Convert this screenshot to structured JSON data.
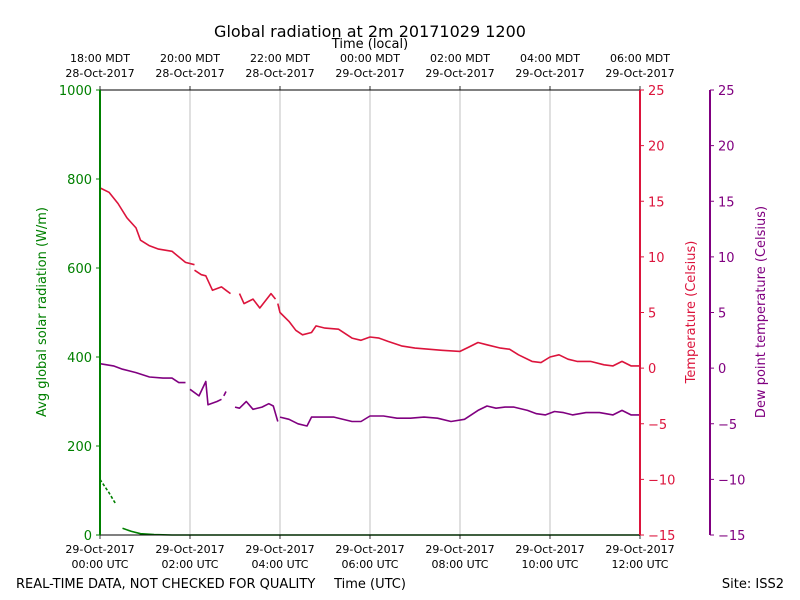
{
  "chart_data": {
    "type": "line",
    "title": "Global radiation at 2m 20171029 1200",
    "top_axis_label": "Time (local)",
    "xlabel": "Time (UTC)",
    "footer_left": "REAL-TIME DATA, NOT CHECKED FOR QUALITY",
    "footer_right": "Site: ISS2",
    "x_range_hours": [
      0,
      12
    ],
    "bottom_ticks": [
      {
        "hour": 0,
        "line1": "29-Oct-2017",
        "line2": "00:00 UTC"
      },
      {
        "hour": 2,
        "line1": "29-Oct-2017",
        "line2": "02:00 UTC"
      },
      {
        "hour": 4,
        "line1": "29-Oct-2017",
        "line2": "04:00 UTC"
      },
      {
        "hour": 6,
        "line1": "29-Oct-2017",
        "line2": "06:00 UTC"
      },
      {
        "hour": 8,
        "line1": "29-Oct-2017",
        "line2": "08:00 UTC"
      },
      {
        "hour": 10,
        "line1": "29-Oct-2017",
        "line2": "10:00 UTC"
      },
      {
        "hour": 12,
        "line1": "29-Oct-2017",
        "line2": "12:00 UTC"
      }
    ],
    "top_ticks": [
      {
        "hour": 0,
        "line1": "18:00 MDT",
        "line2": "28-Oct-2017"
      },
      {
        "hour": 2,
        "line1": "20:00 MDT",
        "line2": "28-Oct-2017"
      },
      {
        "hour": 4,
        "line1": "22:00 MDT",
        "line2": "28-Oct-2017"
      },
      {
        "hour": 6,
        "line1": "00:00 MDT",
        "line2": "29-Oct-2017"
      },
      {
        "hour": 8,
        "line1": "02:00 MDT",
        "line2": "29-Oct-2017"
      },
      {
        "hour": 10,
        "line1": "04:00 MDT",
        "line2": "29-Oct-2017"
      },
      {
        "hour": 12,
        "line1": "06:00 MDT",
        "line2": "29-Oct-2017"
      }
    ],
    "axes": {
      "left": {
        "label": "Avg global solar radiation (W/m)",
        "range": [
          0,
          1000
        ],
        "ticks": [
          "0",
          "200",
          "400",
          "600",
          "800",
          "1000"
        ],
        "tick_values": [
          0,
          200,
          400,
          600,
          800,
          1000
        ],
        "color": "#008000"
      },
      "right1": {
        "label": "Temperature (Celsius)",
        "range": [
          -15,
          25
        ],
        "ticks": [
          "−15",
          "−10",
          "−5",
          "0",
          "5",
          "10",
          "15",
          "20",
          "25"
        ],
        "tick_values": [
          -15,
          -10,
          -5,
          0,
          5,
          10,
          15,
          20,
          25
        ],
        "color": "#dc143c"
      },
      "right2": {
        "label": "Dew point temperature (Celsius)",
        "range": [
          -15,
          25
        ],
        "ticks": [
          "−15",
          "−10",
          "−5",
          "0",
          "5",
          "10",
          "15",
          "20",
          "25"
        ],
        "tick_values": [
          -15,
          -10,
          -5,
          0,
          5,
          10,
          15,
          20,
          25
        ],
        "color": "#800080"
      }
    },
    "series": [
      {
        "name": "Avg global solar radiation",
        "axis": "left",
        "color": "#008000",
        "segments": [
          [
            [
              0,
              125
            ],
            [
              0.1,
              110
            ],
            [
              0.2,
              95
            ],
            [
              0.3,
              78
            ],
            [
              0.35,
              70
            ]
          ],
          [
            [
              0.5,
              15
            ],
            [
              0.7,
              8
            ],
            [
              0.9,
              3
            ],
            [
              1.2,
              1
            ],
            [
              1.6,
              0
            ],
            [
              3.0,
              0
            ],
            [
              4.6,
              0
            ],
            [
              6.0,
              0
            ],
            [
              8.0,
              0
            ],
            [
              10.0,
              0
            ],
            [
              12.0,
              0
            ]
          ]
        ]
      },
      {
        "name": "Temperature",
        "axis": "right1",
        "color": "#dc143c",
        "segments": [
          [
            [
              0,
              16.2
            ],
            [
              0.2,
              15.8
            ],
            [
              0.4,
              14.8
            ],
            [
              0.6,
              13.5
            ],
            [
              0.8,
              12.6
            ],
            [
              0.9,
              11.5
            ],
            [
              1.1,
              11.0
            ],
            [
              1.3,
              10.7
            ],
            [
              1.6,
              10.5
            ],
            [
              1.75,
              10.0
            ],
            [
              1.9,
              9.5
            ],
            [
              2.1,
              9.3
            ]
          ],
          [
            [
              2.1,
              8.8
            ],
            [
              2.25,
              8.4
            ],
            [
              2.35,
              8.3
            ],
            [
              2.5,
              7.0
            ],
            [
              2.7,
              7.3
            ],
            [
              2.8,
              7.0
            ],
            [
              2.9,
              6.7
            ]
          ],
          [
            [
              3.1,
              6.7
            ],
            [
              3.2,
              5.8
            ],
            [
              3.4,
              6.2
            ],
            [
              3.55,
              5.4
            ],
            [
              3.8,
              6.7
            ],
            [
              3.9,
              6.2
            ]
          ],
          [
            [
              3.95,
              5.8
            ],
            [
              4.0,
              5.0
            ],
            [
              4.2,
              4.2
            ],
            [
              4.35,
              3.4
            ],
            [
              4.5,
              3.0
            ],
            [
              4.7,
              3.2
            ],
            [
              4.8,
              3.8
            ],
            [
              5.0,
              3.6
            ],
            [
              5.3,
              3.5
            ],
            [
              5.6,
              2.7
            ],
            [
              5.8,
              2.5
            ],
            [
              6.0,
              2.8
            ],
            [
              6.2,
              2.7
            ],
            [
              6.4,
              2.4
            ],
            [
              6.7,
              2.0
            ],
            [
              7.0,
              1.8
            ],
            [
              7.3,
              1.7
            ],
            [
              7.6,
              1.6
            ],
            [
              8.0,
              1.5
            ],
            [
              8.2,
              1.9
            ],
            [
              8.4,
              2.3
            ],
            [
              8.6,
              2.1
            ],
            [
              8.9,
              1.8
            ],
            [
              9.1,
              1.7
            ],
            [
              9.3,
              1.2
            ],
            [
              9.6,
              0.6
            ],
            [
              9.8,
              0.5
            ],
            [
              10.0,
              1.0
            ],
            [
              10.2,
              1.2
            ],
            [
              10.4,
              0.8
            ],
            [
              10.6,
              0.6
            ],
            [
              10.9,
              0.6
            ],
            [
              11.2,
              0.3
            ],
            [
              11.4,
              0.2
            ],
            [
              11.6,
              0.6
            ],
            [
              11.8,
              0.2
            ],
            [
              12.0,
              0.2
            ]
          ]
        ]
      },
      {
        "name": "Dew point temperature",
        "axis": "right2",
        "color": "#800080",
        "segments": [
          [
            [
              0,
              0.4
            ],
            [
              0.3,
              0.2
            ],
            [
              0.5,
              -0.1
            ],
            [
              0.8,
              -0.4
            ],
            [
              1.1,
              -0.8
            ],
            [
              1.4,
              -0.9
            ],
            [
              1.6,
              -0.9
            ],
            [
              1.75,
              -1.3
            ],
            [
              1.9,
              -1.3
            ]
          ],
          [
            [
              2.0,
              -1.9
            ],
            [
              2.2,
              -2.5
            ],
            [
              2.35,
              -1.2
            ],
            [
              2.4,
              -3.3
            ],
            [
              2.6,
              -3.0
            ],
            [
              2.7,
              -2.8
            ]
          ],
          [
            [
              2.75,
              -2.5
            ],
            [
              2.8,
              -2.1
            ]
          ],
          [
            [
              3.0,
              -3.5
            ],
            [
              3.1,
              -3.6
            ],
            [
              3.25,
              -3.0
            ],
            [
              3.4,
              -3.7
            ],
            [
              3.6,
              -3.5
            ],
            [
              3.75,
              -3.2
            ],
            [
              3.85,
              -3.4
            ],
            [
              3.95,
              -4.8
            ]
          ],
          [
            [
              4.0,
              -4.4
            ],
            [
              4.2,
              -4.6
            ],
            [
              4.4,
              -5.0
            ],
            [
              4.6,
              -5.2
            ],
            [
              4.7,
              -4.4
            ],
            [
              4.9,
              -4.4
            ],
            [
              5.2,
              -4.4
            ],
            [
              5.6,
              -4.8
            ],
            [
              5.8,
              -4.8
            ],
            [
              6.0,
              -4.3
            ],
            [
              6.3,
              -4.3
            ],
            [
              6.6,
              -4.5
            ],
            [
              6.9,
              -4.5
            ],
            [
              7.2,
              -4.4
            ],
            [
              7.5,
              -4.5
            ],
            [
              7.8,
              -4.8
            ],
            [
              8.1,
              -4.6
            ],
            [
              8.4,
              -3.8
            ],
            [
              8.6,
              -3.4
            ],
            [
              8.8,
              -3.6
            ],
            [
              9.0,
              -3.5
            ],
            [
              9.2,
              -3.5
            ],
            [
              9.5,
              -3.8
            ],
            [
              9.7,
              -4.1
            ],
            [
              9.9,
              -4.2
            ],
            [
              10.1,
              -3.9
            ],
            [
              10.3,
              -4.0
            ],
            [
              10.5,
              -4.2
            ],
            [
              10.8,
              -4.0
            ],
            [
              11.1,
              -4.0
            ],
            [
              11.4,
              -4.2
            ],
            [
              11.6,
              -3.8
            ],
            [
              11.8,
              -4.2
            ],
            [
              12.0,
              -4.2
            ]
          ]
        ]
      }
    ]
  }
}
